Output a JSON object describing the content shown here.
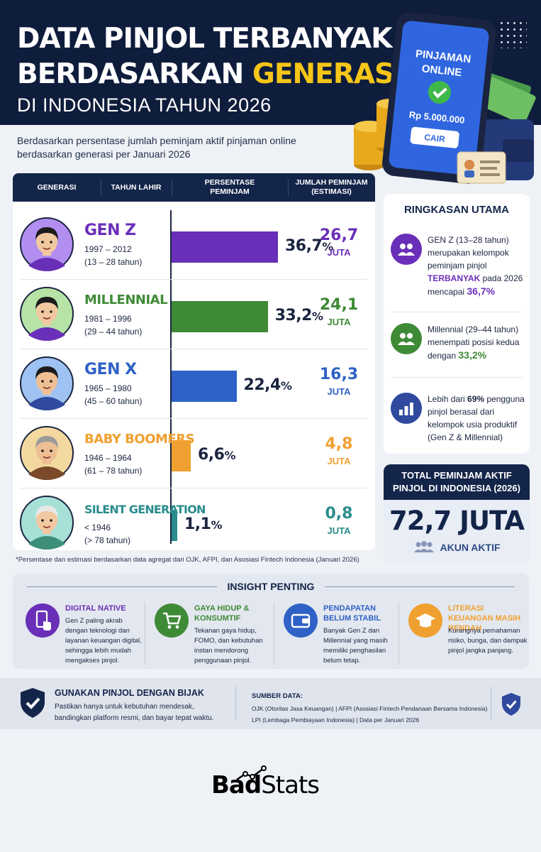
{
  "header": {
    "title_line1": "DATA PINJOL TERBANYAK",
    "title_line2_a": "BERDASARKAN ",
    "title_line2_b": "GENERASI",
    "title_line3": "DI INDONESIA TAHUN 2026"
  },
  "phone": {
    "line1": "PINJAMAN",
    "line2": "ONLINE",
    "amount": "Rp 5.000.000",
    "button": "CAIR"
  },
  "subtitle": "Berdasarkan persentase jumlah peminjam aktif pinjaman online berdasarkan generasi per Januari 2026",
  "table": {
    "col_generasi": "GENERASI",
    "col_tahun": "TAHUN LAHIR",
    "col_persen_1": "PERSENTASE",
    "col_persen_2": "PEMINJAM",
    "col_jumlah_1": "JUMLAH PEMINJAM",
    "col_jumlah_2": "(ESTIMASI)",
    "unit": "JUTA"
  },
  "chart_data": {
    "type": "bar",
    "orientation": "horizontal",
    "categories": [
      "GEN Z",
      "MILLENNIAL",
      "GEN X",
      "BABY BOOMERS",
      "SILENT GENERATION"
    ],
    "series": [
      {
        "values": [
          36.7,
          33.2,
          22.4,
          6.6,
          1.1
        ]
      }
    ],
    "value_labels": [
      "36,7",
      "33,2",
      "22,4",
      "6,6",
      "1,1"
    ],
    "value_suffix": "%",
    "count_labels": [
      "26,7",
      "24,1",
      "16,3",
      "4,8",
      "0,8"
    ],
    "counts_million": [
      26.7,
      24.1,
      16.3,
      4.8,
      0.8
    ],
    "years": [
      "1997 – 2012",
      "1981 – 1996",
      "1965 – 1980",
      "1946 – 1964",
      "< 1946"
    ],
    "ages": [
      "(13 – 28 tahun)",
      "(29 – 44 tahun)",
      "(45 – 60 tahun)",
      "(61 – 78 tahun)",
      "(> 78 tahun)"
    ],
    "colors": [
      "#6a2fb8",
      "#3f8a36",
      "#2f62c6",
      "#f0a030",
      "#2a8c8c"
    ],
    "xlim": [
      0,
      40
    ]
  },
  "footnote": "*Persentase dan estimasi berdasarkan data agregat dari OJK, AFPI, dan Asosiasi Fintech Indonesia (Januari 2026)",
  "summary": {
    "title": "RINGKASAN UTAMA",
    "item1_a": "GEN Z (13–28 tahun) merupakan kelompok peminjam pinjol ",
    "item1_b": "TERBANYAK",
    "item1_c": " pada 2026 mencapai ",
    "item1_d": "36,7%",
    "item2_a": "Millennial (29–44 tahun) menempati posisi kedua dengan ",
    "item2_b": "33,2%",
    "item3_a": "Lebih dari ",
    "item3_b": "69%",
    "item3_c": " pengguna pinjol berasal dari kelompok usia produktif (Gen Z & Millennial)",
    "color_purple": "#6a2fb8",
    "color_green": "#3f8a36",
    "color_blue": "#2f4a9e"
  },
  "total": {
    "head_1": "TOTAL PEMINJAM AKTIF",
    "head_2": "PINJOL DI INDONESIA (2026)",
    "value": "72,7 JUTA",
    "sub": "AKUN AKTIF"
  },
  "insight": {
    "title": "INSIGHT PENTING",
    "items": [
      {
        "title": "DIGITAL NATIVE",
        "text": "Gen Z paling akrab dengan teknologi dan layanan keuangan digital, sehingga lebih mudah mengakses pinjol.",
        "color": "#6a2fb8"
      },
      {
        "title": "GAYA HIDUP & KONSUMTIF",
        "text": "Tekanan gaya hidup, FOMO, dan kebutuhan instan mendorong penggunaan pinjol.",
        "color": "#3f8a36"
      },
      {
        "title": "PENDAPATAN BELUM STABIL",
        "text": "Banyak Gen Z dan Millennial yang masih memiliki penghasilan belum tetap.",
        "color": "#2f62c6"
      },
      {
        "title": "LITERASI KEUANGAN MASIH RENDAH",
        "text": "Kurangnya pemahaman risiko, bunga, dan dampak pinjol jangka panjang.",
        "color": "#f0a030"
      }
    ]
  },
  "bottom": {
    "title": "GUNAKAN PINJOL DENGAN BIJAK",
    "text_1": "Pastikan hanya untuk kebutuhan mendesak,",
    "text_2": "bandingkan platform resmi, dan bayar tepat waktu.",
    "source_head": "SUMBER DATA:",
    "source_1": "OJK (Otoritas Jasa Keuangan) | AFPI (Asosiasi Fintech Pendanaan Bersama Indonesia)",
    "source_2": "LPI (Lembaga Pembiayaan Indonesia) | Data per Januari 2026"
  },
  "logo": {
    "a": "Bad",
    "b": "Stats"
  }
}
